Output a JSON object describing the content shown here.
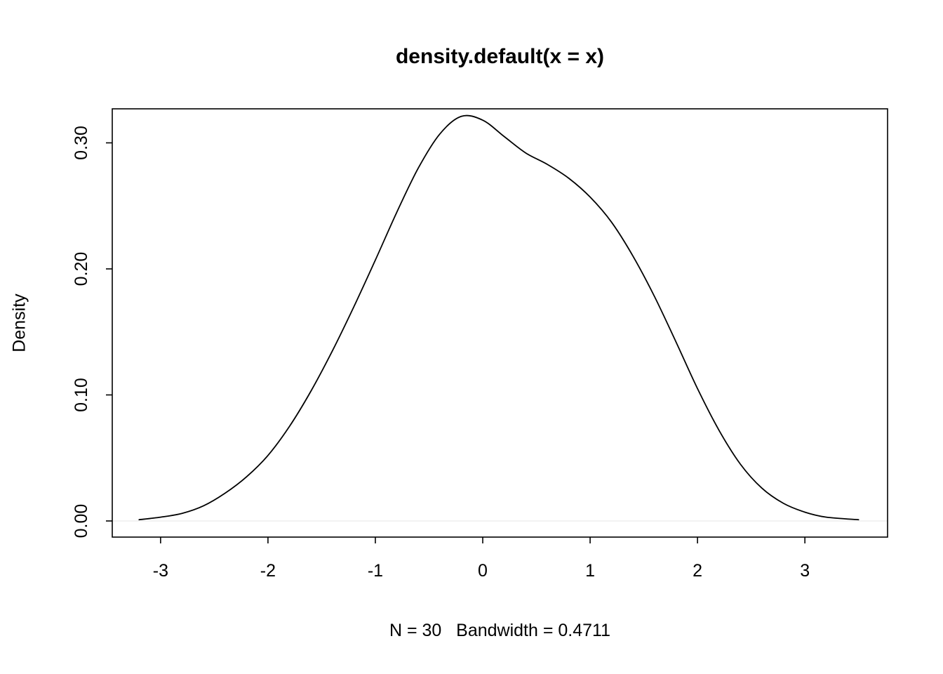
{
  "chart_data": {
    "type": "line",
    "subtype": "kernel-density",
    "title": "density.default(x = x)",
    "xlabel": "N = 30   Bandwidth = 0.4711",
    "ylabel": "Density",
    "n": 30,
    "bandwidth": 0.4711,
    "xlim": [
      -3.45,
      3.77
    ],
    "ylim": [
      -0.0128,
      0.327
    ],
    "xticks": {
      "values": [
        -3,
        -2,
        -1,
        0,
        1,
        2,
        3
      ],
      "labels": [
        "-3",
        "-2",
        "-1",
        "0",
        "1",
        "2",
        "3"
      ]
    },
    "yticks": {
      "values": [
        0.0,
        0.1,
        0.2,
        0.3
      ],
      "labels": [
        "0.00",
        "0.10",
        "0.20",
        "0.30"
      ]
    },
    "series": [
      {
        "name": "density",
        "x": [
          -3.2,
          -3.0,
          -2.8,
          -2.6,
          -2.4,
          -2.2,
          -2.0,
          -1.8,
          -1.6,
          -1.4,
          -1.2,
          -1.0,
          -0.8,
          -0.6,
          -0.4,
          -0.2,
          0.0,
          0.2,
          0.4,
          0.6,
          0.8,
          1.0,
          1.2,
          1.4,
          1.6,
          1.8,
          2.0,
          2.2,
          2.4,
          2.6,
          2.8,
          3.0,
          3.2,
          3.5
        ],
        "y": [
          0.001,
          0.003,
          0.006,
          0.012,
          0.022,
          0.035,
          0.052,
          0.075,
          0.103,
          0.135,
          0.17,
          0.207,
          0.245,
          0.28,
          0.307,
          0.321,
          0.318,
          0.305,
          0.292,
          0.283,
          0.272,
          0.257,
          0.237,
          0.21,
          0.178,
          0.142,
          0.105,
          0.072,
          0.045,
          0.026,
          0.014,
          0.007,
          0.003,
          0.001
        ]
      }
    ],
    "line_color": "#000000",
    "box_color": "#000000",
    "zero_line_color": "#f2f2f2",
    "background": "#ffffff",
    "grid": false,
    "legend": false
  }
}
